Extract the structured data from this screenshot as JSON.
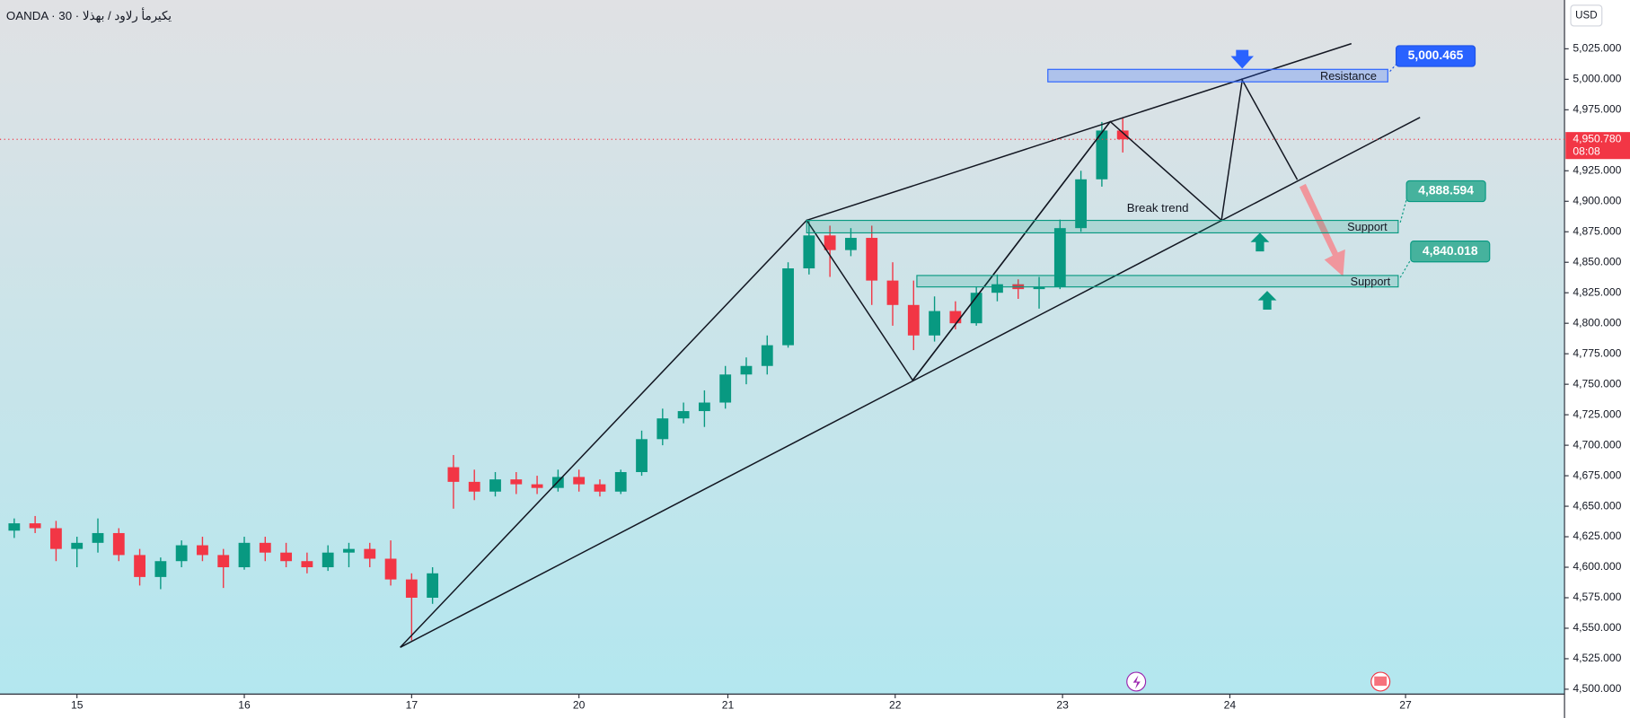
{
  "chart_data": {
    "type": "candlestick",
    "title": "OANDA · 30 · يكيرمأ رلاود / بهذلا",
    "currency": "USD",
    "xlim": [
      -0.46,
      8.89
    ],
    "xticks": [
      {
        "value": 0,
        "label": "15"
      },
      {
        "value": 1,
        "label": "16"
      },
      {
        "value": 2,
        "label": "17"
      },
      {
        "value": 3,
        "label": "20"
      },
      {
        "value": 3.89,
        "label": "21"
      },
      {
        "value": 4.89,
        "label": "22"
      },
      {
        "value": 5.89,
        "label": "23"
      },
      {
        "value": 6.89,
        "label": "24"
      },
      {
        "value": 7.94,
        "label": "27"
      }
    ],
    "ylim": [
      4496,
      5065
    ],
    "yticks": [
      {
        "value": 4500,
        "label": "4,500.000"
      },
      {
        "value": 4525,
        "label": "4,525.000"
      },
      {
        "value": 4550,
        "label": "4,550.000"
      },
      {
        "value": 4575,
        "label": "4,575.000"
      },
      {
        "value": 4600,
        "label": "4,600.000"
      },
      {
        "value": 4625,
        "label": "4,625.000"
      },
      {
        "value": 4650,
        "label": "4,650.000"
      },
      {
        "value": 4675,
        "label": "4,675.000"
      },
      {
        "value": 4700,
        "label": "4,700.000"
      },
      {
        "value": 4725,
        "label": "4,725.000"
      },
      {
        "value": 4750,
        "label": "4,750.000"
      },
      {
        "value": 4775,
        "label": "4,775.000"
      },
      {
        "value": 4800,
        "label": "4,800.000"
      },
      {
        "value": 4825,
        "label": "4,825.000"
      },
      {
        "value": 4850,
        "label": "4,850.000"
      },
      {
        "value": 4875,
        "label": "4,875.000"
      },
      {
        "value": 4900,
        "label": "4,900.000"
      },
      {
        "value": 4925,
        "label": "4,925.000"
      },
      {
        "value": 4975,
        "label": "4,975.000"
      },
      {
        "value": 5000,
        "label": "5,000.000"
      },
      {
        "value": 5025,
        "label": "5,025.000"
      }
    ],
    "up_color": "#089981",
    "down_color": "#f23645",
    "x": [
      -0.375,
      -0.25,
      -0.125,
      0,
      0.125,
      0.25,
      0.375,
      0.5,
      0.625,
      0.75,
      0.875,
      1,
      1.125,
      1.25,
      1.375,
      1.5,
      1.625,
      1.75,
      1.875,
      2,
      2.125,
      2.25,
      2.375,
      2.5,
      2.625,
      2.75,
      2.875,
      3,
      3.125,
      3.25,
      3.375,
      3.5,
      3.625,
      3.75,
      3.875,
      4,
      4.125,
      4.25,
      4.375,
      4.5,
      4.625,
      4.75,
      4.875,
      5,
      5.125,
      5.25,
      5.375,
      5.5,
      5.625,
      5.75,
      5.875,
      6,
      6.125,
      6.25
    ],
    "open": [
      4630,
      4636,
      4632,
      4615,
      4620,
      4628,
      4610,
      4592,
      4605,
      4618,
      4610,
      4600,
      4620,
      4612,
      4605,
      4600,
      4612,
      4615,
      4607,
      4590,
      4575,
      4682,
      4670,
      4662,
      4672,
      4668,
      4665,
      4674,
      4668,
      4662,
      4678,
      4705,
      4722,
      4728,
      4735,
      4758,
      4765,
      4782,
      4845,
      4872,
      4860,
      4870,
      4835,
      4815,
      4790,
      4810,
      4800,
      4825,
      4832,
      4828,
      4830,
      4878,
      4918,
      4958
    ],
    "high": [
      4640,
      4642,
      4638,
      4625,
      4640,
      4632,
      4615,
      4608,
      4622,
      4625,
      4615,
      4625,
      4625,
      4620,
      4612,
      4618,
      4620,
      4620,
      4622,
      4595,
      4600,
      4692,
      4680,
      4678,
      4678,
      4675,
      4680,
      4680,
      4672,
      4680,
      4712,
      4730,
      4735,
      4745,
      4765,
      4772,
      4790,
      4850,
      4885,
      4880,
      4878,
      4880,
      4850,
      4835,
      4822,
      4818,
      4830,
      4840,
      4836,
      4838,
      4885,
      4925,
      4965,
      4968
    ],
    "low": [
      4624,
      4628,
      4605,
      4600,
      4612,
      4605,
      4585,
      4582,
      4600,
      4605,
      4583,
      4598,
      4605,
      4600,
      4595,
      4597,
      4600,
      4600,
      4585,
      4540,
      4570,
      4648,
      4655,
      4658,
      4660,
      4660,
      4662,
      4662,
      4658,
      4660,
      4675,
      4700,
      4718,
      4715,
      4730,
      4750,
      4758,
      4780,
      4840,
      4838,
      4855,
      4815,
      4798,
      4778,
      4785,
      4795,
      4798,
      4818,
      4820,
      4812,
      4828,
      4875,
      4912,
      4940
    ],
    "close": [
      4636,
      4632,
      4615,
      4620,
      4628,
      4610,
      4592,
      4605,
      4618,
      4610,
      4600,
      4620,
      4612,
      4605,
      4600,
      4612,
      4615,
      4607,
      4590,
      4575,
      4595,
      4670,
      4662,
      4672,
      4668,
      4665,
      4674,
      4668,
      4662,
      4678,
      4705,
      4722,
      4728,
      4735,
      4758,
      4765,
      4782,
      4845,
      4872,
      4860,
      4870,
      4835,
      4815,
      4790,
      4810,
      4800,
      4825,
      4832,
      4828,
      4830,
      4878,
      4918,
      4958,
      4950.78
    ],
    "last_price": {
      "value": 4950.78,
      "label": "4,950.780"
    },
    "countdown": "08:08",
    "annotations": [
      {
        "text": "Resistance",
        "level": {
          "value": 5000.465,
          "label": "5,000.465"
        }
      },
      {
        "text": "Support",
        "level": {
          "value": 4888.594,
          "label": "4,888.594"
        }
      },
      {
        "text": "Support",
        "level": {
          "value": 4840.018,
          "label": "4,840.018"
        }
      }
    ],
    "note": "Break trend"
  }
}
